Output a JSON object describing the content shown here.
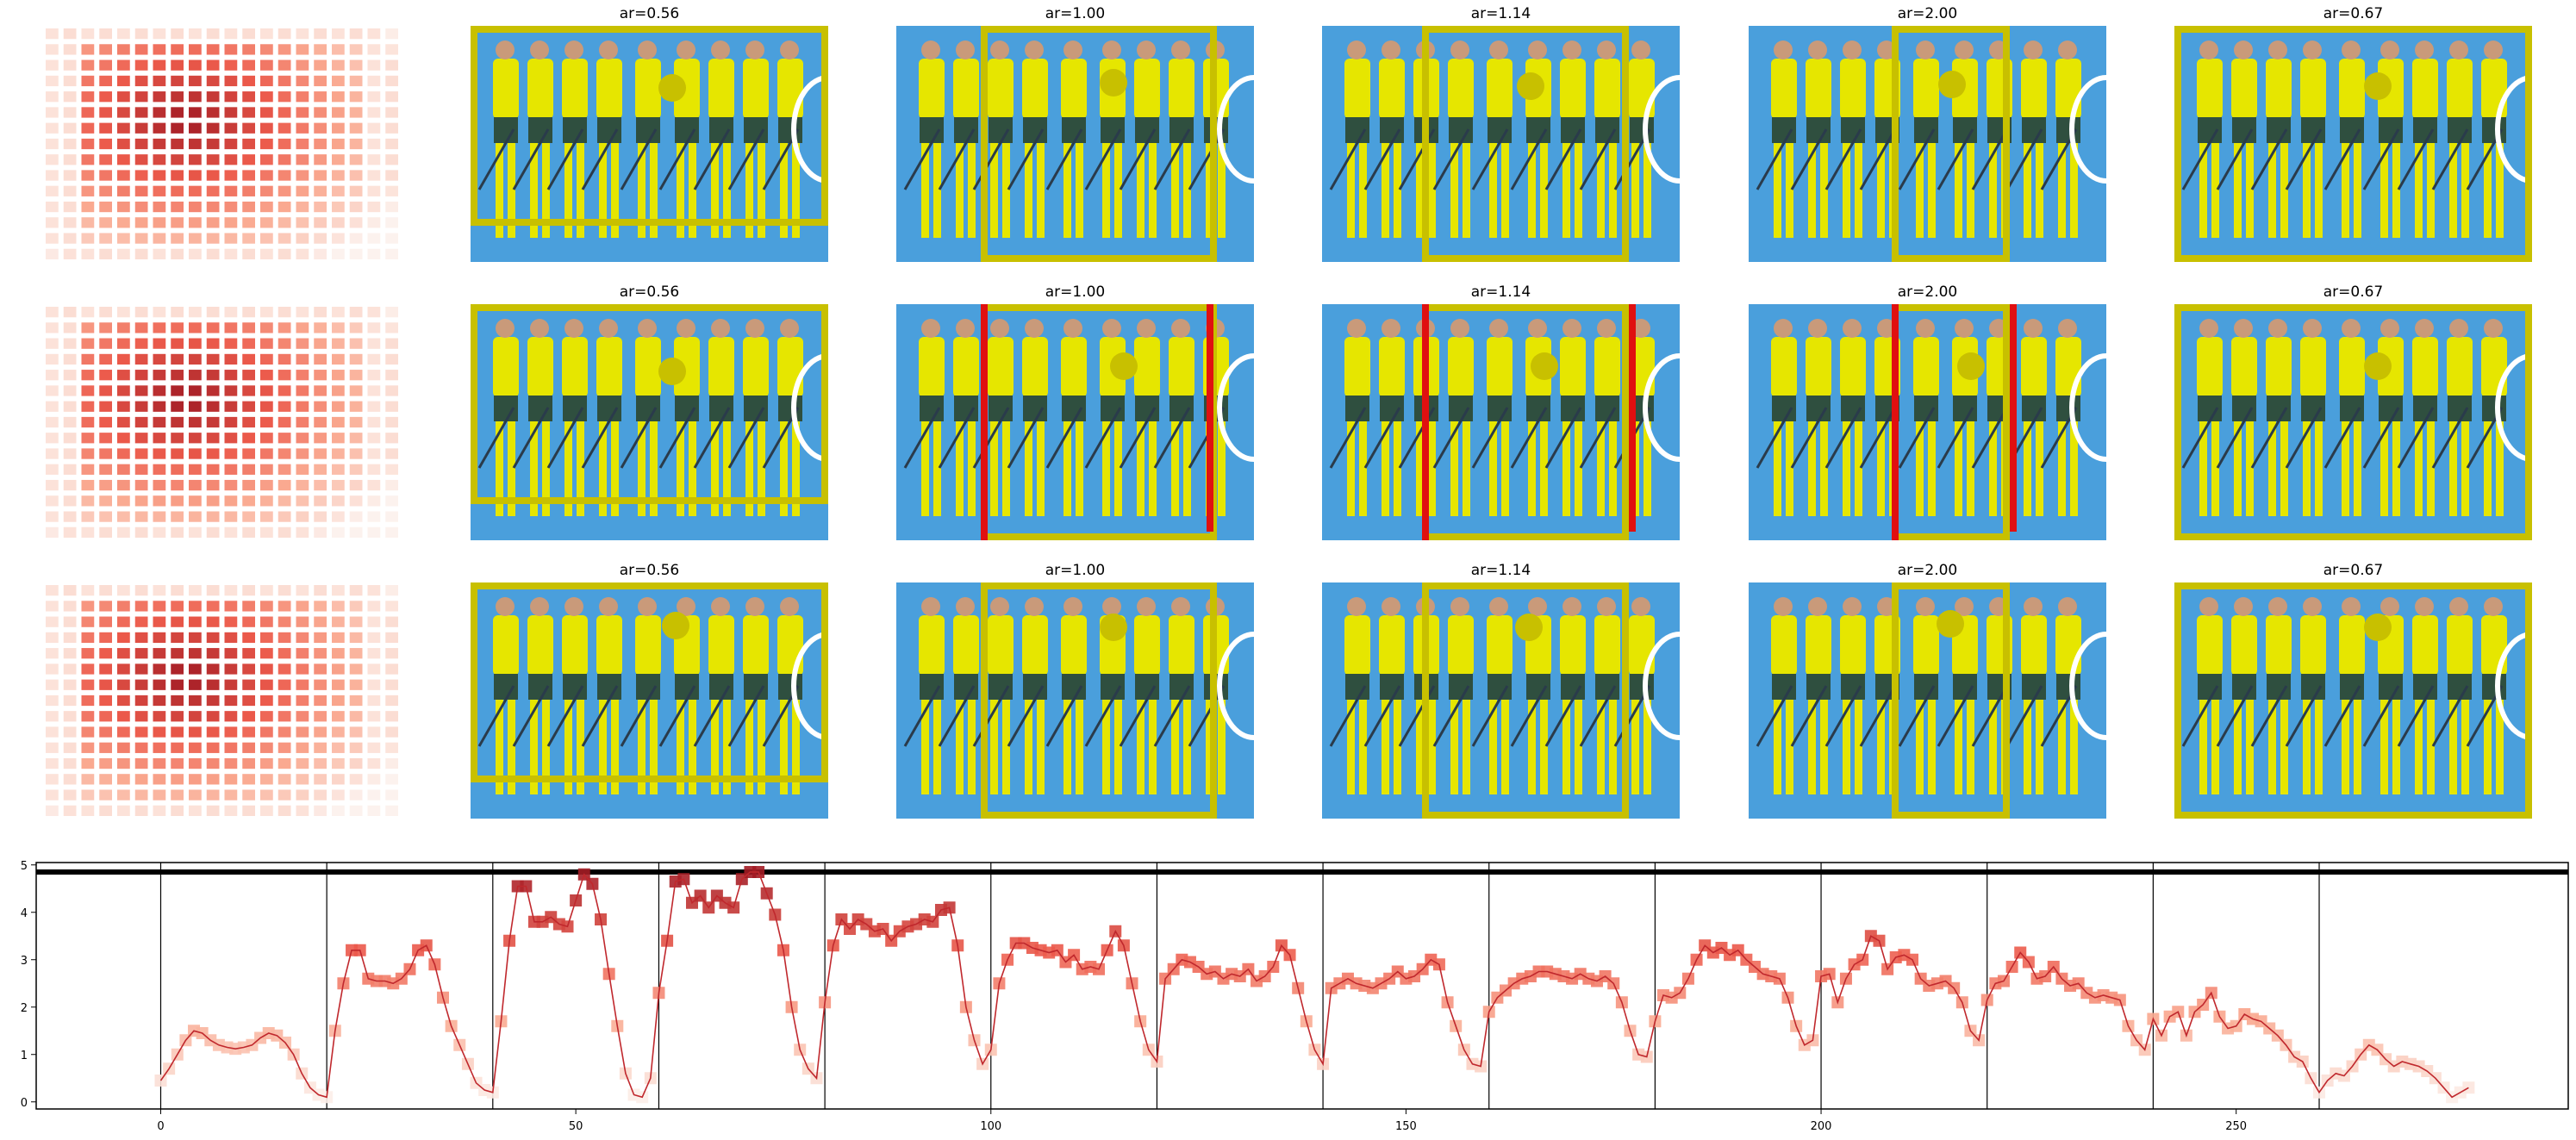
{
  "panels": {
    "title_labels": [
      "ar=0.56",
      "ar=1.00",
      "ar=1.14",
      "ar=2.00",
      "ar=0.67"
    ],
    "rows": 3,
    "colors": {
      "photo_background": "#4a9fdc",
      "crop_box": "#c8c000",
      "marker": "#c8c000",
      "red_bar": "#e01010",
      "player_kit": "#e6e600",
      "player_shorts": "#2f4f3f"
    }
  },
  "chart_data": {
    "type": "line",
    "title": "",
    "xlabel": "",
    "ylabel": "",
    "xlim": [
      -15,
      290
    ],
    "ylim": [
      -0.15,
      5.05
    ],
    "xticks": [
      0,
      50,
      100,
      150,
      200,
      250
    ],
    "yticks": [
      0,
      1,
      2,
      3,
      4,
      5
    ],
    "horizontal_line_y": 4.85,
    "vertical_lines_x": [
      0,
      20,
      40,
      60,
      80,
      100,
      120,
      140,
      160,
      180,
      200,
      220,
      240,
      260
    ],
    "line_color": "#c0282d",
    "points": [
      [
        0,
        0.45
      ],
      [
        1,
        0.7
      ],
      [
        2,
        1.0
      ],
      [
        3,
        1.3
      ],
      [
        4,
        1.5
      ],
      [
        5,
        1.45
      ],
      [
        6,
        1.3
      ],
      [
        7,
        1.2
      ],
      [
        8,
        1.15
      ],
      [
        9,
        1.12
      ],
      [
        10,
        1.15
      ],
      [
        11,
        1.2
      ],
      [
        12,
        1.35
      ],
      [
        13,
        1.45
      ],
      [
        14,
        1.4
      ],
      [
        15,
        1.25
      ],
      [
        16,
        1.0
      ],
      [
        17,
        0.6
      ],
      [
        18,
        0.3
      ],
      [
        19,
        0.15
      ],
      [
        20,
        0.1
      ],
      [
        21,
        1.5
      ],
      [
        22,
        2.5
      ],
      [
        23,
        3.2
      ],
      [
        24,
        3.2
      ],
      [
        25,
        2.6
      ],
      [
        26,
        2.55
      ],
      [
        27,
        2.55
      ],
      [
        28,
        2.5
      ],
      [
        29,
        2.6
      ],
      [
        30,
        2.8
      ],
      [
        31,
        3.2
      ],
      [
        32,
        3.3
      ],
      [
        33,
        2.9
      ],
      [
        34,
        2.2
      ],
      [
        35,
        1.6
      ],
      [
        36,
        1.2
      ],
      [
        37,
        0.8
      ],
      [
        38,
        0.4
      ],
      [
        39,
        0.25
      ],
      [
        40,
        0.2
      ],
      [
        41,
        1.7
      ],
      [
        42,
        3.4
      ],
      [
        43,
        4.55
      ],
      [
        44,
        4.55
      ],
      [
        45,
        3.8
      ],
      [
        46,
        3.8
      ],
      [
        47,
        3.9
      ],
      [
        48,
        3.75
      ],
      [
        49,
        3.7
      ],
      [
        50,
        4.25
      ],
      [
        51,
        4.8
      ],
      [
        52,
        4.6
      ],
      [
        53,
        3.85
      ],
      [
        54,
        2.7
      ],
      [
        55,
        1.6
      ],
      [
        56,
        0.6
      ],
      [
        57,
        0.15
      ],
      [
        58,
        0.1
      ],
      [
        59,
        0.5
      ],
      [
        60,
        2.3
      ],
      [
        61,
        3.4
      ],
      [
        62,
        4.65
      ],
      [
        63,
        4.7
      ],
      [
        64,
        4.2
      ],
      [
        65,
        4.35
      ],
      [
        66,
        4.1
      ],
      [
        67,
        4.35
      ],
      [
        68,
        4.2
      ],
      [
        69,
        4.1
      ],
      [
        70,
        4.7
      ],
      [
        71,
        4.85
      ],
      [
        72,
        4.85
      ],
      [
        73,
        4.4
      ],
      [
        74,
        3.95
      ],
      [
        75,
        3.2
      ],
      [
        76,
        2.0
      ],
      [
        77,
        1.1
      ],
      [
        78,
        0.7
      ],
      [
        79,
        0.5
      ],
      [
        80,
        2.1
      ],
      [
        81,
        3.3
      ],
      [
        82,
        3.85
      ],
      [
        83,
        3.65
      ],
      [
        84,
        3.85
      ],
      [
        85,
        3.75
      ],
      [
        86,
        3.6
      ],
      [
        87,
        3.65
      ],
      [
        88,
        3.4
      ],
      [
        89,
        3.6
      ],
      [
        90,
        3.7
      ],
      [
        91,
        3.75
      ],
      [
        92,
        3.85
      ],
      [
        93,
        3.8
      ],
      [
        94,
        4.05
      ],
      [
        95,
        4.1
      ],
      [
        96,
        3.3
      ],
      [
        97,
        2.0
      ],
      [
        98,
        1.3
      ],
      [
        99,
        0.8
      ],
      [
        100,
        1.1
      ],
      [
        101,
        2.5
      ],
      [
        102,
        3.0
      ],
      [
        103,
        3.35
      ],
      [
        104,
        3.35
      ],
      [
        105,
        3.25
      ],
      [
        106,
        3.2
      ],
      [
        107,
        3.15
      ],
      [
        108,
        3.2
      ],
      [
        109,
        2.95
      ],
      [
        110,
        3.1
      ],
      [
        111,
        2.8
      ],
      [
        112,
        2.85
      ],
      [
        113,
        2.8
      ],
      [
        114,
        3.2
      ],
      [
        115,
        3.6
      ],
      [
        116,
        3.3
      ],
      [
        117,
        2.5
      ],
      [
        118,
        1.7
      ],
      [
        119,
        1.1
      ],
      [
        120,
        0.85
      ],
      [
        121,
        2.6
      ],
      [
        122,
        2.8
      ],
      [
        123,
        3.0
      ],
      [
        124,
        2.95
      ],
      [
        125,
        2.85
      ],
      [
        126,
        2.7
      ],
      [
        127,
        2.75
      ],
      [
        128,
        2.6
      ],
      [
        129,
        2.7
      ],
      [
        130,
        2.65
      ],
      [
        131,
        2.8
      ],
      [
        132,
        2.55
      ],
      [
        133,
        2.65
      ],
      [
        134,
        2.85
      ],
      [
        135,
        3.3
      ],
      [
        136,
        3.1
      ],
      [
        137,
        2.4
      ],
      [
        138,
        1.7
      ],
      [
        139,
        1.1
      ],
      [
        140,
        0.8
      ],
      [
        141,
        2.4
      ],
      [
        142,
        2.5
      ],
      [
        143,
        2.6
      ],
      [
        144,
        2.5
      ],
      [
        145,
        2.45
      ],
      [
        146,
        2.4
      ],
      [
        147,
        2.5
      ],
      [
        148,
        2.6
      ],
      [
        149,
        2.75
      ],
      [
        150,
        2.6
      ],
      [
        151,
        2.65
      ],
      [
        152,
        2.8
      ],
      [
        153,
        3.0
      ],
      [
        154,
        2.9
      ],
      [
        155,
        2.1
      ],
      [
        156,
        1.6
      ],
      [
        157,
        1.1
      ],
      [
        158,
        0.8
      ],
      [
        159,
        0.75
      ],
      [
        160,
        1.9
      ],
      [
        161,
        2.2
      ],
      [
        162,
        2.35
      ],
      [
        163,
        2.5
      ],
      [
        164,
        2.6
      ],
      [
        165,
        2.65
      ],
      [
        166,
        2.75
      ],
      [
        167,
        2.75
      ],
      [
        168,
        2.7
      ],
      [
        169,
        2.65
      ],
      [
        170,
        2.6
      ],
      [
        171,
        2.7
      ],
      [
        172,
        2.6
      ],
      [
        173,
        2.55
      ],
      [
        174,
        2.65
      ],
      [
        175,
        2.5
      ],
      [
        176,
        2.1
      ],
      [
        177,
        1.5
      ],
      [
        178,
        1.0
      ],
      [
        179,
        0.95
      ],
      [
        180,
        1.7
      ],
      [
        181,
        2.25
      ],
      [
        182,
        2.2
      ],
      [
        183,
        2.3
      ],
      [
        184,
        2.6
      ],
      [
        185,
        3.0
      ],
      [
        186,
        3.3
      ],
      [
        187,
        3.15
      ],
      [
        188,
        3.25
      ],
      [
        189,
        3.1
      ],
      [
        190,
        3.2
      ],
      [
        191,
        3.0
      ],
      [
        192,
        2.85
      ],
      [
        193,
        2.7
      ],
      [
        194,
        2.65
      ],
      [
        195,
        2.6
      ],
      [
        196,
        2.2
      ],
      [
        197,
        1.6
      ],
      [
        198,
        1.2
      ],
      [
        199,
        1.3
      ],
      [
        200,
        2.65
      ],
      [
        201,
        2.7
      ],
      [
        202,
        2.1
      ],
      [
        203,
        2.6
      ],
      [
        204,
        2.9
      ],
      [
        205,
        3.0
      ],
      [
        206,
        3.5
      ],
      [
        207,
        3.4
      ],
      [
        208,
        2.8
      ],
      [
        209,
        3.05
      ],
      [
        210,
        3.1
      ],
      [
        211,
        3.0
      ],
      [
        212,
        2.6
      ],
      [
        213,
        2.45
      ],
      [
        214,
        2.5
      ],
      [
        215,
        2.55
      ],
      [
        216,
        2.4
      ],
      [
        217,
        2.1
      ],
      [
        218,
        1.5
      ],
      [
        219,
        1.3
      ],
      [
        220,
        2.15
      ],
      [
        221,
        2.5
      ],
      [
        222,
        2.55
      ],
      [
        223,
        2.85
      ],
      [
        224,
        3.15
      ],
      [
        225,
        2.95
      ],
      [
        226,
        2.6
      ],
      [
        227,
        2.65
      ],
      [
        228,
        2.85
      ],
      [
        229,
        2.6
      ],
      [
        230,
        2.45
      ],
      [
        231,
        2.5
      ],
      [
        232,
        2.3
      ],
      [
        233,
        2.2
      ],
      [
        234,
        2.25
      ],
      [
        235,
        2.2
      ],
      [
        236,
        2.15
      ],
      [
        237,
        1.6
      ],
      [
        238,
        1.3
      ],
      [
        239,
        1.1
      ],
      [
        240,
        1.75
      ],
      [
        241,
        1.4
      ],
      [
        242,
        1.8
      ],
      [
        243,
        1.9
      ],
      [
        244,
        1.4
      ],
      [
        245,
        1.9
      ],
      [
        246,
        2.05
      ],
      [
        247,
        2.3
      ],
      [
        248,
        1.8
      ],
      [
        249,
        1.55
      ],
      [
        250,
        1.6
      ],
      [
        251,
        1.85
      ],
      [
        252,
        1.75
      ],
      [
        253,
        1.7
      ],
      [
        254,
        1.55
      ],
      [
        255,
        1.4
      ],
      [
        256,
        1.2
      ],
      [
        257,
        0.95
      ],
      [
        258,
        0.85
      ],
      [
        259,
        0.5
      ],
      [
        260,
        0.2
      ],
      [
        261,
        0.45
      ],
      [
        262,
        0.6
      ],
      [
        263,
        0.55
      ],
      [
        264,
        0.75
      ],
      [
        265,
        1.0
      ],
      [
        266,
        1.2
      ],
      [
        267,
        1.1
      ],
      [
        268,
        0.9
      ],
      [
        269,
        0.75
      ],
      [
        270,
        0.85
      ],
      [
        271,
        0.8
      ],
      [
        272,
        0.75
      ],
      [
        273,
        0.65
      ],
      [
        274,
        0.5
      ],
      [
        275,
        0.3
      ],
      [
        276,
        0.1
      ],
      [
        277,
        0.2
      ],
      [
        278,
        0.3
      ]
    ],
    "markers_shown_in_range": [
      0,
      95
    ]
  }
}
